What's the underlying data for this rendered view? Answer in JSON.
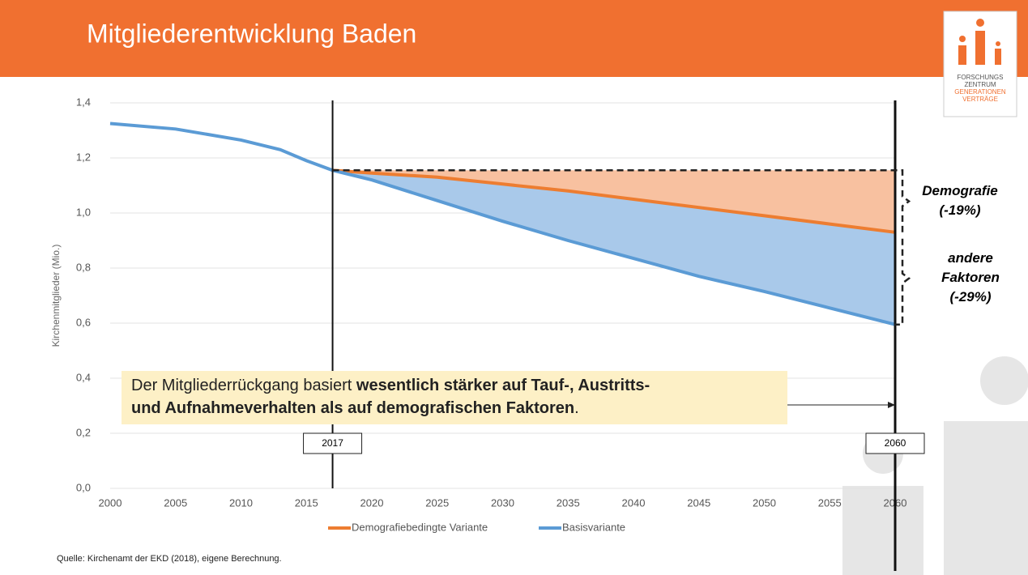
{
  "header": {
    "title": "Mitgliederentwicklung Baden"
  },
  "logo": {
    "lines": [
      "FORSCHUNGS",
      "ZENTRUM",
      "GENERATIONEN",
      "VERTRÄGE"
    ]
  },
  "chart_data": {
    "type": "line",
    "y_label": "Kirchenmitglieder (Mio.)",
    "x": [
      2000,
      2005,
      2010,
      2013,
      2015,
      2017,
      2020,
      2025,
      2030,
      2035,
      2040,
      2045,
      2050,
      2055,
      2060
    ],
    "xlim": [
      2000,
      2060
    ],
    "xticks": [
      2000,
      2005,
      2010,
      2015,
      2020,
      2025,
      2030,
      2035,
      2040,
      2045,
      2050,
      2055,
      2060
    ],
    "ylim": [
      0,
      1.4
    ],
    "yticks": [
      {
        "value": 0,
        "label": "0,0"
      },
      {
        "value": 0.2,
        "label": "0,2"
      },
      {
        "value": 0.4,
        "label": "0,4"
      },
      {
        "value": 0.6,
        "label": "0,6"
      },
      {
        "value": 0.8,
        "label": "0,8"
      },
      {
        "value": 1.0,
        "label": "1,0"
      },
      {
        "value": 1.2,
        "label": "1,2"
      },
      {
        "value": 1.4,
        "label": "1,4"
      }
    ],
    "grid": true,
    "series": [
      {
        "name": "Demografiebedingte Variante",
        "color": "#ed7d31",
        "fill": "#f8c1a0",
        "values": [
          null,
          null,
          null,
          null,
          null,
          1.155,
          1.145,
          1.13,
          1.105,
          1.08,
          1.05,
          1.02,
          0.99,
          0.96,
          0.93
        ]
      },
      {
        "name": "Basisvariante",
        "color": "#5b9bd5",
        "fill": "#a9c9ea",
        "values": [
          1.325,
          1.305,
          1.265,
          1.23,
          1.19,
          1.155,
          1.12,
          1.045,
          0.97,
          0.9,
          0.835,
          0.77,
          0.715,
          0.655,
          0.595
        ]
      }
    ],
    "markers": [
      2017,
      2060
    ],
    "annotations": [
      {
        "lines": [
          "Demografie",
          "(-19%)"
        ]
      },
      {
        "lines": [
          "andere",
          "Faktoren",
          "(-29%)"
        ]
      }
    ],
    "legend": "bottom"
  },
  "callout": {
    "parts": [
      "Der Mitgliederrückgang basiert ",
      "wesentlich stärker auf Tauf-, Austritts-",
      "und Aufnahmeverhalten als auf demografischen Faktoren",
      "."
    ]
  },
  "source": "Quelle: Kirchenamt der EKD (2018), eigene Berechnung."
}
